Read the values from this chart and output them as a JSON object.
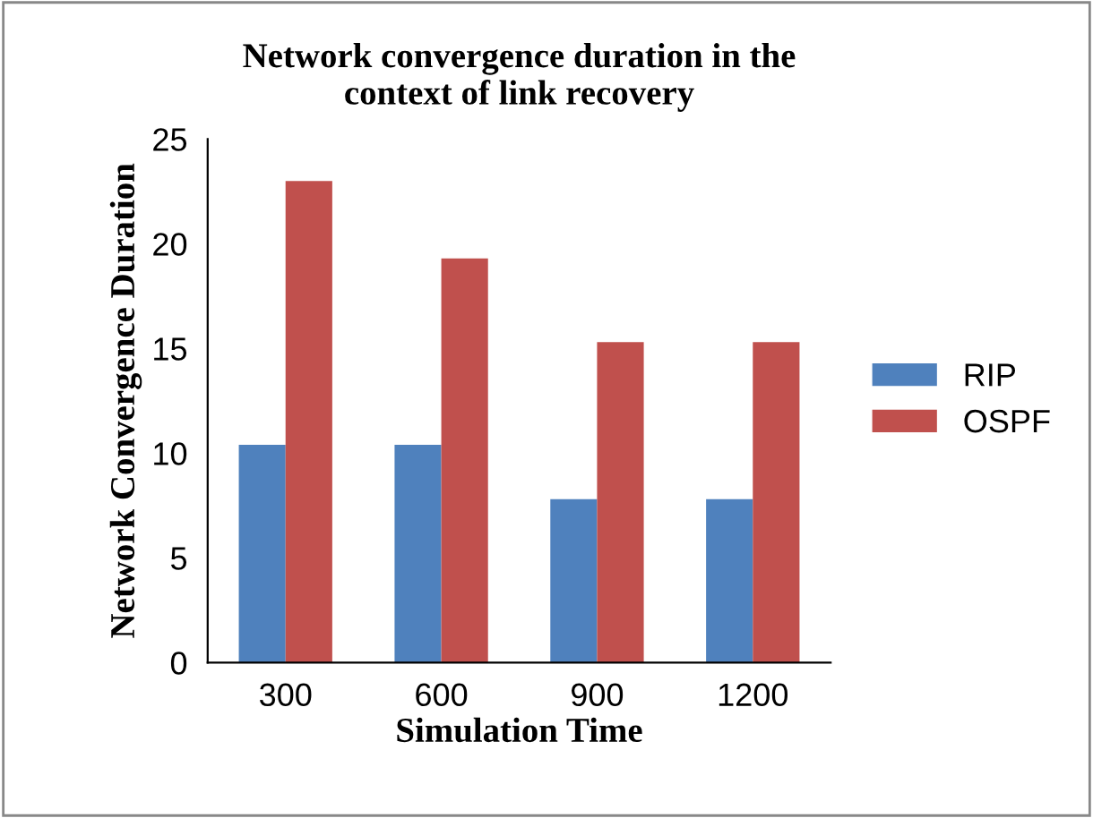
{
  "chart_data": {
    "type": "bar",
    "title": "Network convergence duration in the\ncontext of link recovery",
    "xlabel": "Simulation Time",
    "ylabel": "Network Convergence Duration",
    "categories": [
      "300",
      "600",
      "900",
      "1200"
    ],
    "series": [
      {
        "name": "RIP",
        "color": "#4f81bd",
        "values": [
          10.4,
          10.4,
          7.8,
          7.8
        ]
      },
      {
        "name": "OSPF",
        "color": "#c0504d",
        "values": [
          23.0,
          19.3,
          15.3,
          15.3
        ]
      }
    ],
    "ylim": [
      0,
      25
    ],
    "yticks": [
      0,
      5,
      10,
      15,
      20,
      25
    ],
    "grid": false,
    "legend": "right"
  }
}
